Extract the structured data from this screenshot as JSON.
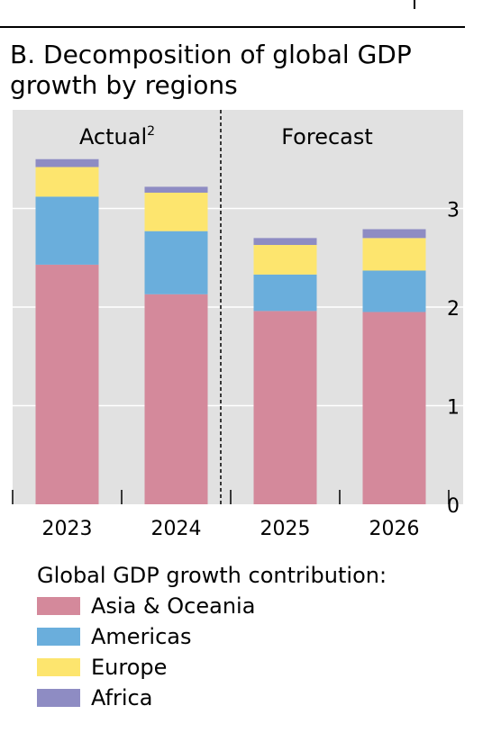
{
  "title": "B. Decomposition of global GDP growth by regions",
  "chart_data": {
    "type": "bar",
    "stacked": true,
    "categories": [
      "2023",
      "2024",
      "2025",
      "2026"
    ],
    "series": [
      {
        "name": "Asia & Oceania",
        "color": "#D4899B",
        "values": [
          2.43,
          2.13,
          1.96,
          1.95
        ]
      },
      {
        "name": "Americas",
        "color": "#6AAEDC",
        "values": [
          0.69,
          0.64,
          0.37,
          0.42
        ]
      },
      {
        "name": "Europe",
        "color": "#FDE56E",
        "values": [
          0.3,
          0.39,
          0.3,
          0.33
        ]
      },
      {
        "name": "Africa",
        "color": "#8E8CC3",
        "values": [
          0.08,
          0.06,
          0.07,
          0.09
        ]
      }
    ],
    "ylim": [
      0,
      4
    ],
    "yticks": [
      0,
      1,
      2,
      3
    ],
    "sections": [
      {
        "label": "Actual",
        "superscript": "2"
      },
      {
        "label": "Forecast",
        "superscript": ""
      }
    ],
    "grid": true,
    "legend_title": "Global GDP growth contribution:",
    "legend_position": "bottom"
  }
}
